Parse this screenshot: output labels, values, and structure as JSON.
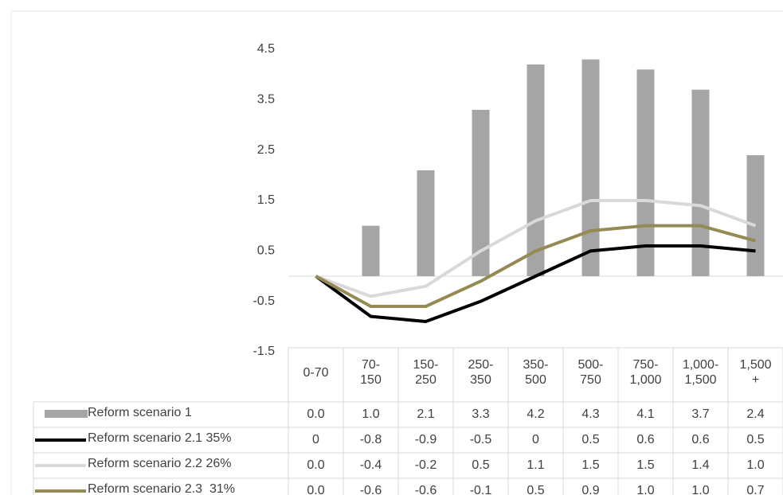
{
  "chart_data": {
    "type": "bar-line",
    "categories": [
      "0-70",
      "70-\n150",
      "150-\n250",
      "250-\n350",
      "350-\n500",
      "500-\n750",
      "750-\n1,000",
      "1,000-\n1,500",
      "1,500\n+"
    ],
    "ylim": [
      -1.5,
      4.5
    ],
    "yticks": [
      4.5,
      3.5,
      2.5,
      1.5,
      0.5,
      -0.5,
      -1.5
    ],
    "grid": false,
    "data_table": true,
    "series": [
      {
        "name": "Reform scenario 1",
        "kind": "bar",
        "color": "#a5a5a5",
        "values": [
          0.0,
          1.0,
          2.1,
          3.3,
          4.2,
          4.3,
          4.1,
          3.7,
          2.4
        ],
        "value_labels": [
          "0.0",
          "1.0",
          "2.1",
          "3.3",
          "4.2",
          "4.3",
          "4.1",
          "3.7",
          "2.4"
        ]
      },
      {
        "name": "Reform scenario 2.1 35%",
        "kind": "line",
        "color": "#000000",
        "values": [
          0,
          -0.8,
          -0.9,
          -0.5,
          0,
          0.5,
          0.6,
          0.6,
          0.5
        ],
        "value_labels": [
          "0",
          "-0.8",
          "-0.9",
          "-0.5",
          "0",
          "0.5",
          "0.6",
          "0.6",
          "0.5"
        ]
      },
      {
        "name": "Reform scenario 2.2 26%",
        "kind": "line",
        "color": "#d9d9d9",
        "values": [
          0.0,
          -0.4,
          -0.2,
          0.5,
          1.1,
          1.5,
          1.5,
          1.4,
          1.0
        ],
        "value_labels": [
          "0.0",
          "-0.4",
          "-0.2",
          "0.5",
          "1.1",
          "1.5",
          "1.5",
          "1.4",
          "1.0"
        ]
      },
      {
        "name": "Reform scenario 2.3  31%",
        "kind": "line",
        "color": "#948a54",
        "values": [
          0.0,
          -0.6,
          -0.6,
          -0.1,
          0.5,
          0.9,
          1.0,
          1.0,
          0.7
        ],
        "value_labels": [
          "0.0",
          "-0.6",
          "-0.6",
          "-0.1",
          "0.5",
          "0.9",
          "1.0",
          "1.0",
          "0.7"
        ]
      }
    ]
  }
}
